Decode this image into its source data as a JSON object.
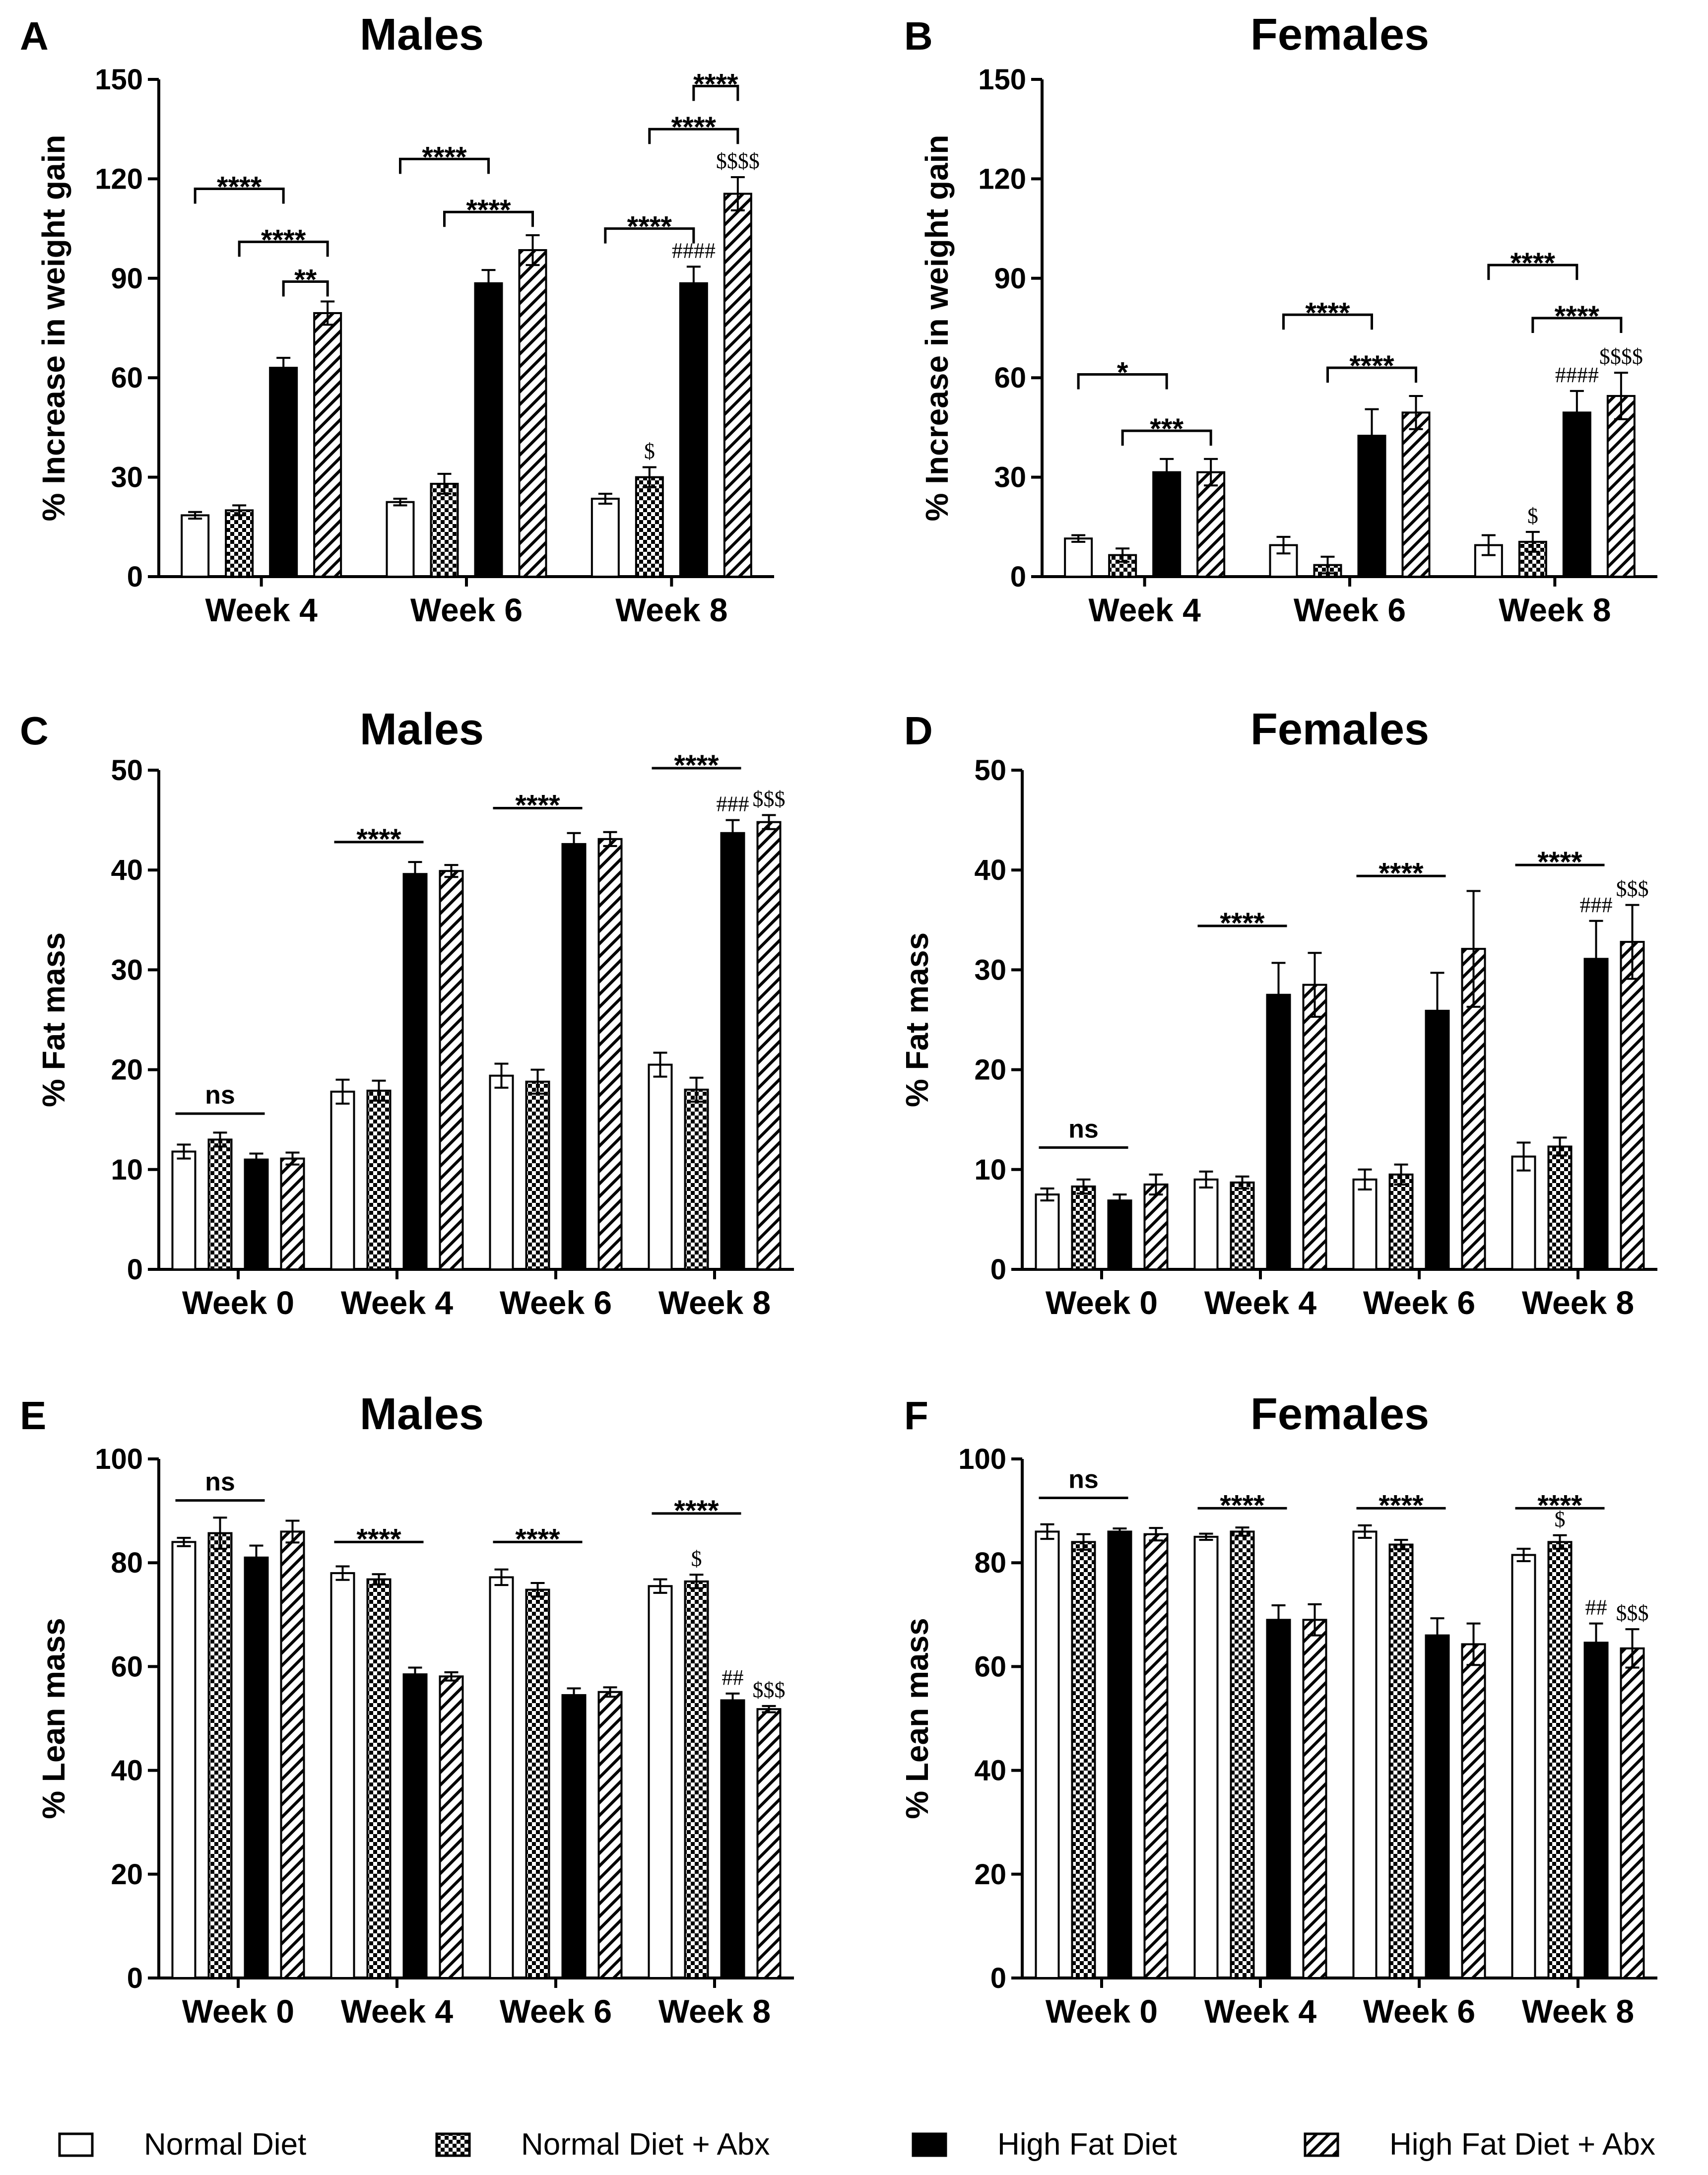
{
  "legend": [
    {
      "label": "Normal Diet",
      "fill": "white"
    },
    {
      "label": "Normal Diet + Abx",
      "fill": "checker"
    },
    {
      "label": "High Fat Diet",
      "fill": "black"
    },
    {
      "label": "High Fat Diet + Abx",
      "fill": "hatch"
    }
  ],
  "colors": {
    "ink": "#000000",
    "background": "#ffffff"
  },
  "chart_data": [
    {
      "letter": "A",
      "title": "Males",
      "type": "bar",
      "ylabel": "% Increase in weight gain",
      "ylim": [
        0,
        150
      ],
      "yticks": [
        0,
        30,
        60,
        90,
        120,
        150
      ],
      "categories": [
        "Week 4",
        "Week 6",
        "Week 8"
      ],
      "series": [
        {
          "name": "Normal Diet",
          "values": [
            18.5,
            22.5,
            23.5
          ],
          "errors": [
            1,
            1,
            1.5
          ]
        },
        {
          "name": "Normal Diet + Abx",
          "values": [
            20,
            28,
            30
          ],
          "errors": [
            1.5,
            3,
            3
          ]
        },
        {
          "name": "High Fat Diet",
          "values": [
            63,
            88.5,
            88.5
          ],
          "errors": [
            3,
            4,
            5
          ]
        },
        {
          "name": "High Fat Diet + Abx",
          "values": [
            79.5,
            98.5,
            115.5
          ],
          "errors": [
            3.5,
            4.5,
            5
          ]
        }
      ],
      "brackets": [
        {
          "kind": "bracket",
          "label": "****",
          "cat": 0,
          "from": 0,
          "to": 2,
          "y": 117
        },
        {
          "kind": "bracket",
          "label": "****",
          "cat": 0,
          "from": 1,
          "to": 3,
          "y": 101
        },
        {
          "kind": "bracket",
          "label": "**",
          "cat": 0,
          "from": 2,
          "to": 3,
          "y": 89
        },
        {
          "kind": "bracket",
          "label": "****",
          "cat": 1,
          "from": 0,
          "to": 2,
          "y": 126
        },
        {
          "kind": "bracket",
          "label": "****",
          "cat": 1,
          "from": 1,
          "to": 3,
          "y": 110
        },
        {
          "kind": "bracket",
          "label": "****",
          "cat": 2,
          "from": 0,
          "to": 2,
          "y": 105
        },
        {
          "kind": "bracket",
          "label": "****",
          "cat": 2,
          "from": 2,
          "to": 3,
          "y": 148
        },
        {
          "kind": "bracket",
          "label": "****",
          "cat": 2,
          "from": 1,
          "to": 3,
          "y": 135
        }
      ],
      "marks": [
        {
          "label": "$",
          "cat": 2,
          "bar": 1
        },
        {
          "label": "####",
          "cat": 2,
          "bar": 2
        },
        {
          "label": "$$$$",
          "cat": 2,
          "bar": 3
        }
      ]
    },
    {
      "letter": "B",
      "title": "Females",
      "type": "bar",
      "ylabel": "% Increase in weight gain",
      "ylim": [
        0,
        150
      ],
      "yticks": [
        0,
        30,
        60,
        90,
        120,
        150
      ],
      "categories": [
        "Week 4",
        "Week 6",
        "Week 8"
      ],
      "series": [
        {
          "name": "Normal Diet",
          "values": [
            11.5,
            9.5,
            9.5
          ],
          "errors": [
            1,
            2.5,
            3
          ]
        },
        {
          "name": "Normal Diet + Abx",
          "values": [
            6.5,
            3.5,
            10.5
          ],
          "errors": [
            2,
            2.5,
            3
          ]
        },
        {
          "name": "High Fat Diet",
          "values": [
            31.5,
            42.5,
            49.5
          ],
          "errors": [
            4,
            8,
            6.5
          ]
        },
        {
          "name": "High Fat Diet + Abx",
          "values": [
            31.5,
            49.5,
            54.5
          ],
          "errors": [
            4,
            5,
            7
          ]
        }
      ],
      "brackets": [
        {
          "kind": "bracket",
          "label": "*",
          "cat": 0,
          "from": 0,
          "to": 2,
          "y": 61
        },
        {
          "kind": "bracket",
          "label": "***",
          "cat": 0,
          "from": 1,
          "to": 3,
          "y": 44
        },
        {
          "kind": "bracket",
          "label": "****",
          "cat": 1,
          "from": 0,
          "to": 2,
          "y": 79
        },
        {
          "kind": "bracket",
          "label": "****",
          "cat": 1,
          "from": 1,
          "to": 3,
          "y": 63
        },
        {
          "kind": "bracket",
          "label": "****",
          "cat": 2,
          "from": 0,
          "to": 2,
          "y": 94
        },
        {
          "kind": "bracket",
          "label": "****",
          "cat": 2,
          "from": 1,
          "to": 3,
          "y": 78
        }
      ],
      "marks": [
        {
          "label": "$",
          "cat": 2,
          "bar": 1
        },
        {
          "label": "####",
          "cat": 2,
          "bar": 2
        },
        {
          "label": "$$$$",
          "cat": 2,
          "bar": 3
        }
      ]
    },
    {
      "letter": "C",
      "title": "Males",
      "type": "bar",
      "ylabel": "% Fat mass",
      "ylim": [
        0,
        50
      ],
      "yticks": [
        0,
        10,
        20,
        30,
        40,
        50
      ],
      "categories": [
        "Week 0",
        "Week 4",
        "Week 6",
        "Week 8"
      ],
      "series": [
        {
          "name": "Normal Diet",
          "values": [
            11.8,
            17.8,
            19.4,
            20.5
          ],
          "errors": [
            0.7,
            1.2,
            1.2,
            1.2
          ]
        },
        {
          "name": "Normal Diet + Abx",
          "values": [
            13,
            17.9,
            18.8,
            18
          ],
          "errors": [
            0.7,
            1,
            1.2,
            1.2
          ]
        },
        {
          "name": "High Fat Diet",
          "values": [
            11,
            39.6,
            42.6,
            43.7
          ],
          "errors": [
            0.6,
            1.2,
            1.1,
            1.3
          ]
        },
        {
          "name": "High Fat Diet + Abx",
          "values": [
            11.1,
            39.9,
            43.1,
            44.8
          ],
          "errors": [
            0.6,
            0.6,
            0.7,
            0.7
          ]
        }
      ],
      "brackets": [
        {
          "kind": "line",
          "label": "ns",
          "cat": 0,
          "from": 0,
          "to": 2,
          "y": 15.6
        },
        {
          "kind": "line",
          "label": "****",
          "cat": 1,
          "from": 0,
          "to": 2,
          "y": 42.8
        },
        {
          "kind": "line",
          "label": "****",
          "cat": 2,
          "from": 0,
          "to": 2,
          "y": 46.2
        },
        {
          "kind": "line",
          "label": "****",
          "cat": 3,
          "from": 0,
          "to": 2,
          "y": 50.2
        }
      ],
      "marks": [
        {
          "label": "###",
          "cat": 3,
          "bar": 2
        },
        {
          "label": "$$$",
          "cat": 3,
          "bar": 3
        }
      ]
    },
    {
      "letter": "D",
      "title": "Females",
      "type": "bar",
      "ylabel": "% Fat mass",
      "ylim": [
        0,
        50
      ],
      "yticks": [
        0,
        10,
        20,
        30,
        40,
        50
      ],
      "categories": [
        "Week 0",
        "Week 4",
        "Week 6",
        "Week 8"
      ],
      "series": [
        {
          "name": "Normal Diet",
          "values": [
            7.5,
            9,
            9,
            11.3
          ],
          "errors": [
            0.6,
            0.8,
            1,
            1.4
          ]
        },
        {
          "name": "Normal Diet + Abx",
          "values": [
            8.3,
            8.7,
            9.5,
            12.3
          ],
          "errors": [
            0.7,
            0.6,
            1,
            0.9
          ]
        },
        {
          "name": "High Fat Diet",
          "values": [
            6.9,
            27.5,
            25.9,
            31.1
          ],
          "errors": [
            0.6,
            3.2,
            3.8,
            3.8
          ]
        },
        {
          "name": "High Fat Diet + Abx",
          "values": [
            8.5,
            28.5,
            32.1,
            32.8
          ],
          "errors": [
            1,
            3.2,
            5.8,
            3.7
          ]
        }
      ],
      "brackets": [
        {
          "kind": "line",
          "label": "ns",
          "cat": 0,
          "from": 0,
          "to": 2,
          "y": 12.2
        },
        {
          "kind": "line",
          "label": "****",
          "cat": 1,
          "from": 0,
          "to": 2,
          "y": 34.4
        },
        {
          "kind": "line",
          "label": "****",
          "cat": 2,
          "from": 0,
          "to": 2,
          "y": 39.4
        },
        {
          "kind": "line",
          "label": "****",
          "cat": 3,
          "from": 0,
          "to": 2,
          "y": 40.5
        }
      ],
      "marks": [
        {
          "label": "###",
          "cat": 3,
          "bar": 2
        },
        {
          "label": "$$$",
          "cat": 3,
          "bar": 3
        }
      ]
    },
    {
      "letter": "E",
      "title": "Males",
      "type": "bar",
      "ylabel": "% Lean mass",
      "ylim": [
        0,
        100
      ],
      "yticks": [
        0,
        20,
        40,
        60,
        80,
        100
      ],
      "categories": [
        "Week 0",
        "Week 4",
        "Week 6",
        "Week 8"
      ],
      "series": [
        {
          "name": "Normal Diet",
          "values": [
            84,
            78,
            77.2,
            75.5
          ],
          "errors": [
            0.8,
            1.3,
            1.5,
            1.3
          ]
        },
        {
          "name": "Normal Diet + Abx",
          "values": [
            85.7,
            76.8,
            74.8,
            76.4
          ],
          "errors": [
            3,
            1,
            1.3,
            1.3
          ]
        },
        {
          "name": "High Fat Diet",
          "values": [
            81,
            58.5,
            54.5,
            53.5
          ],
          "errors": [
            2.3,
            1.3,
            1.3,
            1.3
          ]
        },
        {
          "name": "High Fat Diet + Abx",
          "values": [
            86,
            58.1,
            55.1,
            51.8
          ],
          "errors": [
            2.1,
            0.8,
            0.9,
            0.6
          ]
        }
      ],
      "brackets": [
        {
          "kind": "line",
          "label": "ns",
          "cat": 0,
          "from": 0,
          "to": 2,
          "y": 92
        },
        {
          "kind": "line",
          "label": "****",
          "cat": 1,
          "from": 0,
          "to": 2,
          "y": 84
        },
        {
          "kind": "line",
          "label": "****",
          "cat": 2,
          "from": 0,
          "to": 2,
          "y": 84
        },
        {
          "kind": "line",
          "label": "****",
          "cat": 3,
          "from": 0,
          "to": 2,
          "y": 89.5
        }
      ],
      "marks": [
        {
          "label": "$",
          "cat": 3,
          "bar": 1
        },
        {
          "label": "##",
          "cat": 3,
          "bar": 2
        },
        {
          "label": "$$$",
          "cat": 3,
          "bar": 3
        }
      ]
    },
    {
      "letter": "F",
      "title": "Females",
      "type": "bar",
      "ylabel": "% Lean mass",
      "ylim": [
        0,
        100
      ],
      "yticks": [
        0,
        20,
        40,
        60,
        80,
        100
      ],
      "categories": [
        "Week 0",
        "Week 4",
        "Week 6",
        "Week 8"
      ],
      "series": [
        {
          "name": "Normal Diet",
          "values": [
            86,
            85,
            86,
            81.5
          ],
          "errors": [
            1.4,
            0.6,
            1.2,
            1.2
          ]
        },
        {
          "name": "Normal Diet + Abx",
          "values": [
            84,
            86,
            83.5,
            84
          ],
          "errors": [
            1.5,
            0.8,
            0.9,
            1.3
          ]
        },
        {
          "name": "High Fat Diet",
          "values": [
            86,
            69,
            66,
            64.6
          ],
          "errors": [
            0.6,
            2.8,
            3.3,
            3.7
          ]
        },
        {
          "name": "High Fat Diet + Abx",
          "values": [
            85.5,
            69,
            64.3,
            63.5
          ],
          "errors": [
            1.2,
            3,
            4,
            3.7
          ]
        }
      ],
      "brackets": [
        {
          "kind": "line",
          "label": "ns",
          "cat": 0,
          "from": 0,
          "to": 2,
          "y": 92.5
        },
        {
          "kind": "line",
          "label": "****",
          "cat": 1,
          "from": 0,
          "to": 2,
          "y": 90.5
        },
        {
          "kind": "line",
          "label": "****",
          "cat": 2,
          "from": 0,
          "to": 2,
          "y": 90.5
        },
        {
          "kind": "line",
          "label": "****",
          "cat": 3,
          "from": 0,
          "to": 2,
          "y": 90.5
        }
      ],
      "marks": [
        {
          "label": "$",
          "cat": 3,
          "bar": 1
        },
        {
          "label": "##",
          "cat": 3,
          "bar": 2
        },
        {
          "label": "$$$",
          "cat": 3,
          "bar": 3
        }
      ]
    }
  ]
}
